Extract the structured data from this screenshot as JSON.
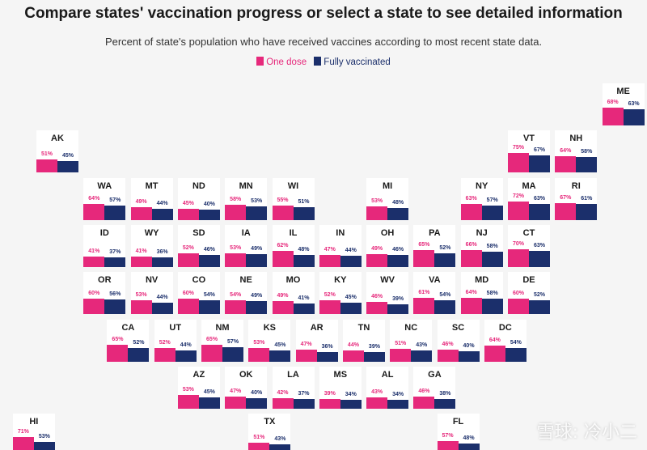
{
  "header": {
    "title": "Compare states' vaccination progress or select a state to see detailed information",
    "subtitle": "Percent of state's population who have received vaccines according to most recent state data."
  },
  "legend": {
    "one_dose_label": "One dose",
    "fully_label": "Fully vaccinated"
  },
  "colors": {
    "one_dose": "#e6287b",
    "fully_vaccinated": "#1b2f6b",
    "background": "#f5f5f5",
    "tile": "#ffffff"
  },
  "watermark": "雪球: 冷小二",
  "chart_data": {
    "type": "bar",
    "title": "Compare states' vaccination progress or select a state to see detailed information",
    "subtitle": "Percent of state's population who have received vaccines according to most recent state data.",
    "unit": "%",
    "series_names": [
      "One dose",
      "Fully vaccinated"
    ],
    "states": [
      {
        "code": "ME",
        "col": 12,
        "row": 0,
        "one_dose": 68,
        "fully": 63
      },
      {
        "code": "AK",
        "col": 0,
        "row": 1,
        "one_dose": 51,
        "fully": 45
      },
      {
        "code": "VT",
        "col": 10,
        "row": 1,
        "one_dose": 75,
        "fully": 67
      },
      {
        "code": "NH",
        "col": 11,
        "row": 1,
        "one_dose": 64,
        "fully": 58
      },
      {
        "code": "WA",
        "col": 1,
        "row": 2,
        "one_dose": 64,
        "fully": 57
      },
      {
        "code": "MT",
        "col": 2,
        "row": 2,
        "one_dose": 49,
        "fully": 44
      },
      {
        "code": "ND",
        "col": 3,
        "row": 2,
        "one_dose": 45,
        "fully": 40
      },
      {
        "code": "MN",
        "col": 4,
        "row": 2,
        "one_dose": 58,
        "fully": 53
      },
      {
        "code": "WI",
        "col": 5,
        "row": 2,
        "one_dose": 55,
        "fully": 51
      },
      {
        "code": "MI",
        "col": 7,
        "row": 2,
        "one_dose": 53,
        "fully": 48
      },
      {
        "code": "NY",
        "col": 9,
        "row": 2,
        "one_dose": 63,
        "fully": 57
      },
      {
        "code": "MA",
        "col": 10,
        "row": 2,
        "one_dose": 72,
        "fully": 63
      },
      {
        "code": "RI",
        "col": 11,
        "row": 2,
        "one_dose": 67,
        "fully": 61
      },
      {
        "code": "ID",
        "col": 1,
        "row": 3,
        "one_dose": 41,
        "fully": 37
      },
      {
        "code": "WY",
        "col": 2,
        "row": 3,
        "one_dose": 41,
        "fully": 36
      },
      {
        "code": "SD",
        "col": 3,
        "row": 3,
        "one_dose": 52,
        "fully": 46
      },
      {
        "code": "IA",
        "col": 4,
        "row": 3,
        "one_dose": 53,
        "fully": 49
      },
      {
        "code": "IL",
        "col": 5,
        "row": 3,
        "one_dose": 62,
        "fully": 48
      },
      {
        "code": "IN",
        "col": 6,
        "row": 3,
        "one_dose": 47,
        "fully": 44
      },
      {
        "code": "OH",
        "col": 7,
        "row": 3,
        "one_dose": 49,
        "fully": 46
      },
      {
        "code": "PA",
        "col": 8,
        "row": 3,
        "one_dose": 65,
        "fully": 52
      },
      {
        "code": "NJ",
        "col": 9,
        "row": 3,
        "one_dose": 66,
        "fully": 58
      },
      {
        "code": "CT",
        "col": 10,
        "row": 3,
        "one_dose": 70,
        "fully": 63
      },
      {
        "code": "OR",
        "col": 1,
        "row": 4,
        "one_dose": 60,
        "fully": 56
      },
      {
        "code": "NV",
        "col": 2,
        "row": 4,
        "one_dose": 53,
        "fully": 44
      },
      {
        "code": "CO",
        "col": 3,
        "row": 4,
        "one_dose": 60,
        "fully": 54
      },
      {
        "code": "NE",
        "col": 4,
        "row": 4,
        "one_dose": 54,
        "fully": 49
      },
      {
        "code": "MO",
        "col": 5,
        "row": 4,
        "one_dose": 49,
        "fully": 41
      },
      {
        "code": "KY",
        "col": 6,
        "row": 4,
        "one_dose": 52,
        "fully": 45
      },
      {
        "code": "WV",
        "col": 7,
        "row": 4,
        "one_dose": 46,
        "fully": 39
      },
      {
        "code": "VA",
        "col": 8,
        "row": 4,
        "one_dose": 61,
        "fully": 54
      },
      {
        "code": "MD",
        "col": 9,
        "row": 4,
        "one_dose": 64,
        "fully": 58
      },
      {
        "code": "DE",
        "col": 10,
        "row": 4,
        "one_dose": 60,
        "fully": 52
      },
      {
        "code": "CA",
        "col": 1.5,
        "row": 5,
        "one_dose": 65,
        "fully": 52
      },
      {
        "code": "UT",
        "col": 2.5,
        "row": 5,
        "one_dose": 52,
        "fully": 44
      },
      {
        "code": "NM",
        "col": 3.5,
        "row": 5,
        "one_dose": 65,
        "fully": 57
      },
      {
        "code": "KS",
        "col": 4.5,
        "row": 5,
        "one_dose": 53,
        "fully": 45
      },
      {
        "code": "AR",
        "col": 5.5,
        "row": 5,
        "one_dose": 47,
        "fully": 36
      },
      {
        "code": "TN",
        "col": 6.5,
        "row": 5,
        "one_dose": 44,
        "fully": 39
      },
      {
        "code": "NC",
        "col": 7.5,
        "row": 5,
        "one_dose": 51,
        "fully": 43
      },
      {
        "code": "SC",
        "col": 8.5,
        "row": 5,
        "one_dose": 46,
        "fully": 40
      },
      {
        "code": "DC",
        "col": 9.5,
        "row": 5,
        "one_dose": 64,
        "fully": 54
      },
      {
        "code": "AZ",
        "col": 3,
        "row": 6,
        "one_dose": 53,
        "fully": 45
      },
      {
        "code": "OK",
        "col": 4,
        "row": 6,
        "one_dose": 47,
        "fully": 40
      },
      {
        "code": "LA",
        "col": 5,
        "row": 6,
        "one_dose": 42,
        "fully": 37
      },
      {
        "code": "MS",
        "col": 6,
        "row": 6,
        "one_dose": 39,
        "fully": 34
      },
      {
        "code": "AL",
        "col": 7,
        "row": 6,
        "one_dose": 43,
        "fully": 34
      },
      {
        "code": "GA",
        "col": 8,
        "row": 6,
        "one_dose": 46,
        "fully": 38
      },
      {
        "code": "HI",
        "col": -0.5,
        "row": 7,
        "one_dose": 71,
        "fully": 53
      },
      {
        "code": "TX",
        "col": 4.5,
        "row": 7,
        "one_dose": 51,
        "fully": 43
      },
      {
        "code": "FL",
        "col": 8.5,
        "row": 7,
        "one_dose": 57,
        "fully": 48
      }
    ]
  }
}
